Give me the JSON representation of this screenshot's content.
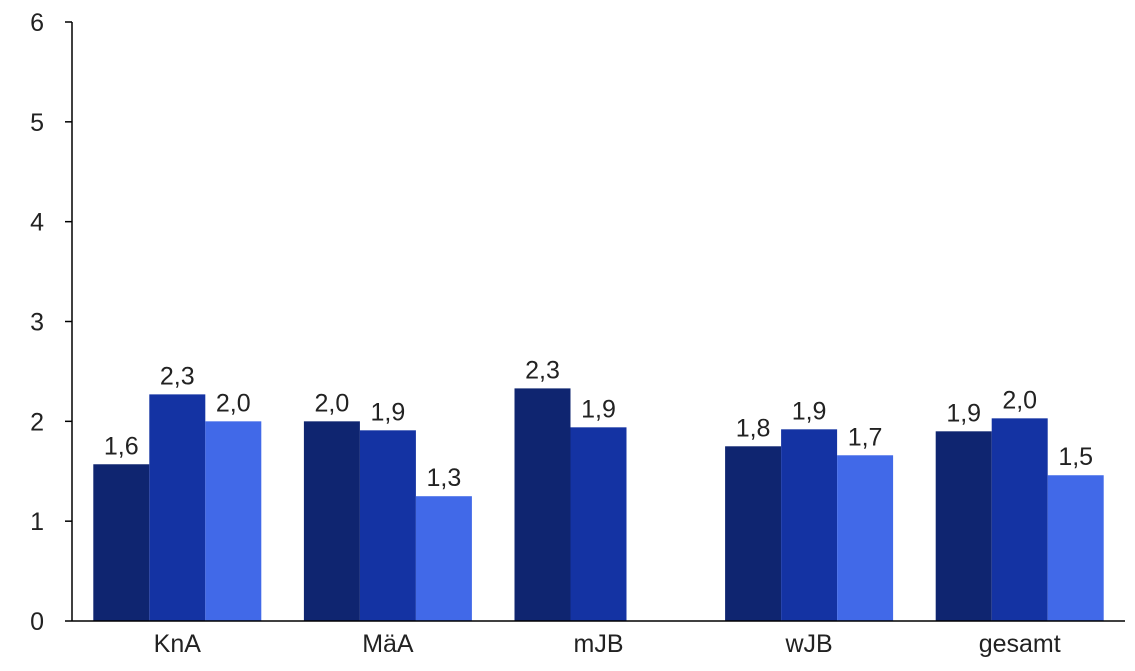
{
  "chart_data": {
    "type": "bar",
    "title": "",
    "xlabel": "",
    "ylabel": "",
    "ylim": [
      0,
      6
    ],
    "yticks": [
      0,
      1,
      2,
      3,
      4,
      5,
      6
    ],
    "grid": false,
    "legend": "none",
    "categories": [
      "KnA",
      "MäA",
      "mJB",
      "wJB",
      "gesamt"
    ],
    "series": [
      {
        "color": "#0f2570",
        "values": [
          1.57,
          2.0,
          2.33,
          1.75,
          1.9
        ],
        "labels": [
          "1,6",
          "2,0",
          "2,3",
          "1,8",
          "1,9"
        ]
      },
      {
        "color": "#1433a3",
        "values": [
          2.27,
          1.91,
          1.94,
          1.92,
          2.03
        ],
        "labels": [
          "2,3",
          "1,9",
          "1,9",
          "1,9",
          "2,0"
        ]
      },
      {
        "color": "#4169e8",
        "values": [
          2.0,
          1.25,
          null,
          1.66,
          1.46
        ],
        "labels": [
          "2,0",
          "1,3",
          "",
          "1,7",
          "1,5"
        ]
      }
    ]
  }
}
